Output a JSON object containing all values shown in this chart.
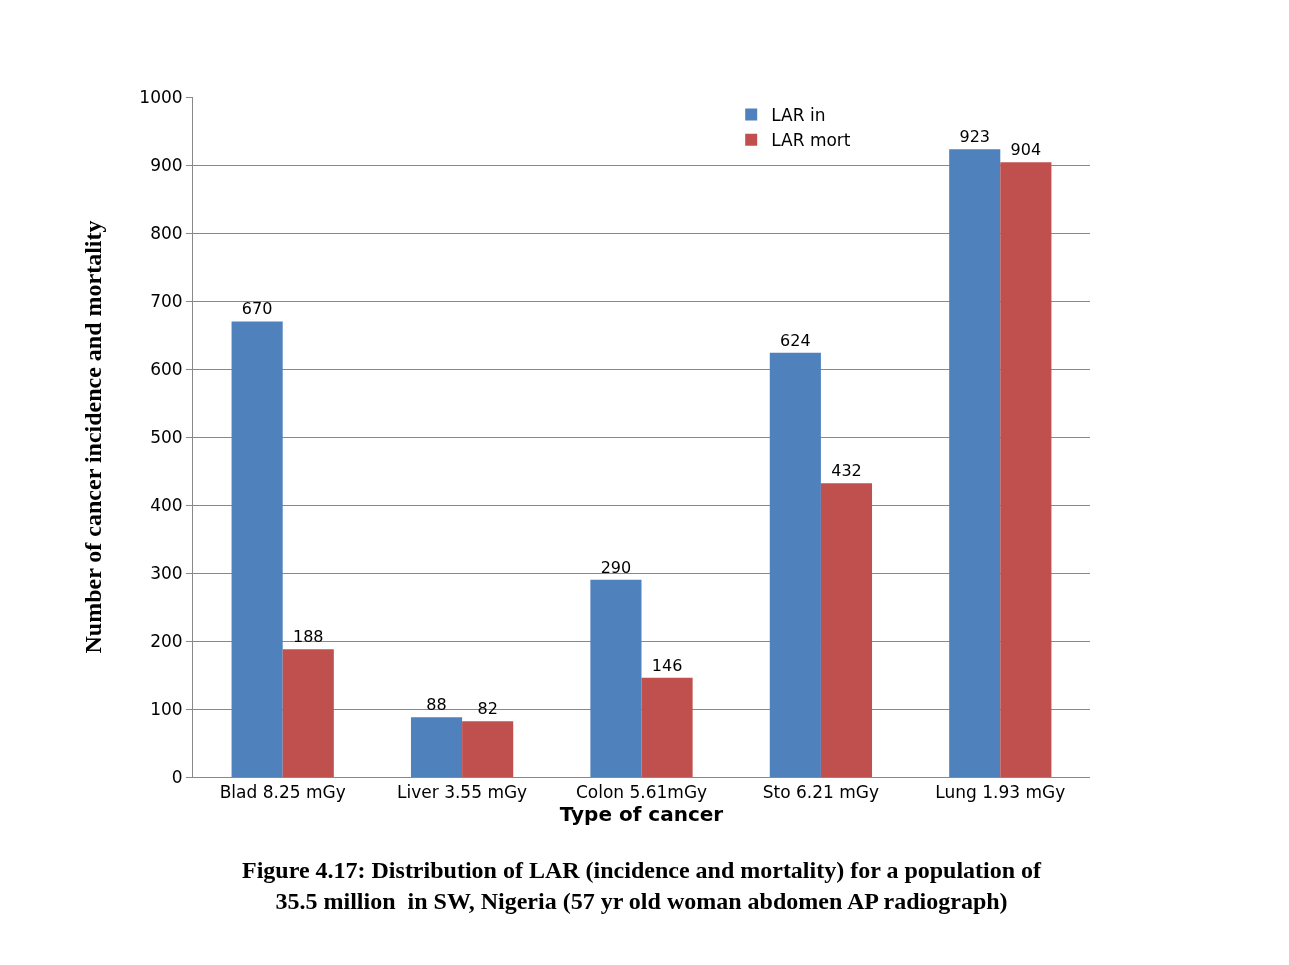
{
  "chart_data": {
    "type": "bar",
    "categories": [
      "Blad 8.25 mGy",
      "Liver 3.55 mGy",
      "Colon 5.61mGy",
      "Sto 6.21 mGy",
      "Lung 1.93 mGy"
    ],
    "series": [
      {
        "name": "LAR in",
        "color": "#4f81bd",
        "values": [
          670,
          88,
          290,
          624,
          923
        ]
      },
      {
        "name": "LAR mort",
        "color": "#c0504d",
        "values": [
          188,
          82,
          146,
          432,
          904
        ]
      }
    ],
    "xlabel": "Type of cancer",
    "ylabel": "Number of cancer incidence and mortality",
    "ylim": [
      0,
      1000
    ],
    "yticks": [
      0,
      100,
      200,
      300,
      400,
      500,
      600,
      700,
      800,
      900,
      1000
    ],
    "grid": "y",
    "legend": "top right",
    "data_labels": true,
    "annotations": [
      "Figure 4.17: Distribution of LAR (incidence and mortality) for a population of\n35.5 million  in SW, Nigeria (57 yr old woman abdomen AP radiograph)"
    ]
  }
}
